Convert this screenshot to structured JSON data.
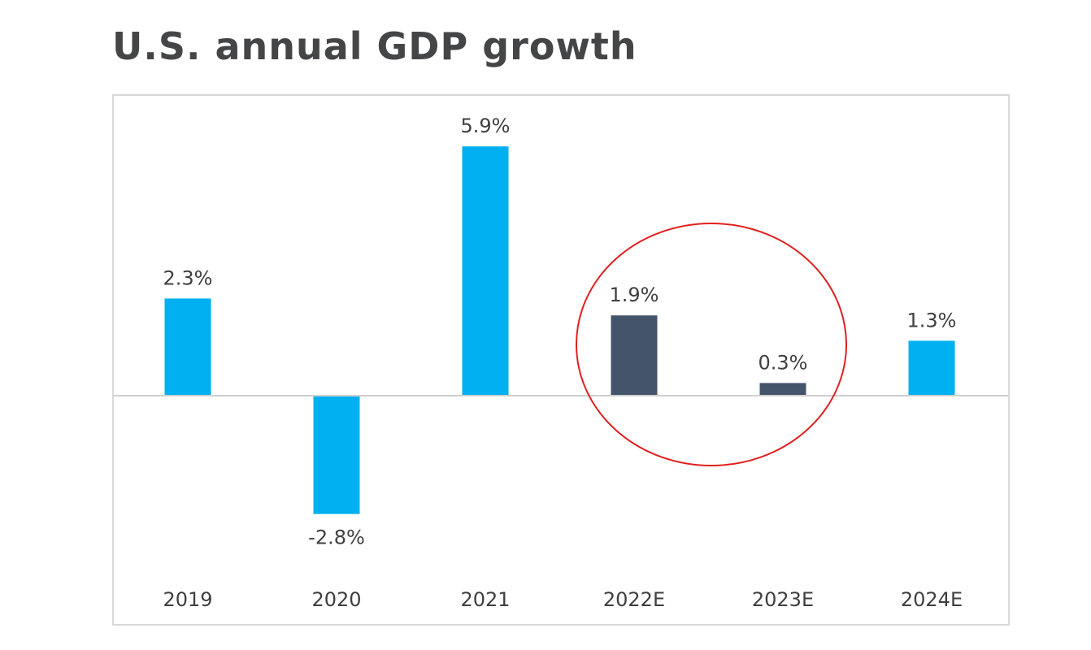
{
  "page": {
    "title": "U.S. annual GDP growth"
  },
  "chart_data": {
    "type": "bar",
    "title": "U.S. annual GDP growth",
    "xlabel": "",
    "ylabel": "",
    "categories": [
      "2019",
      "2020",
      "2021",
      "2022E",
      "2023E",
      "2024E"
    ],
    "values": [
      2.3,
      -2.8,
      5.9,
      1.9,
      0.3,
      1.3
    ],
    "value_labels": [
      "2.3%",
      "-2.8%",
      "5.9%",
      "1.9%",
      "0.3%",
      "1.3%"
    ],
    "bar_colors": [
      "#00b0f0",
      "#00b0f0",
      "#00b0f0",
      "#44546a",
      "#44546a",
      "#00b0f0"
    ],
    "highlighted_categories": [
      "2022E",
      "2023E"
    ],
    "annotation": {
      "shape": "ellipse",
      "color": "#e02020",
      "encloses": [
        "2022E",
        "2023E"
      ]
    },
    "ylim": [
      -4.6,
      7.0
    ],
    "grid": false,
    "legend": "none",
    "colors": {
      "actual": "#00b0f0",
      "estimate_highlight": "#44546a",
      "zero_line": "#d0d0d0",
      "frame": "#d9d9d9",
      "title_text": "#444546",
      "label_text": "#3f3f3f"
    }
  }
}
